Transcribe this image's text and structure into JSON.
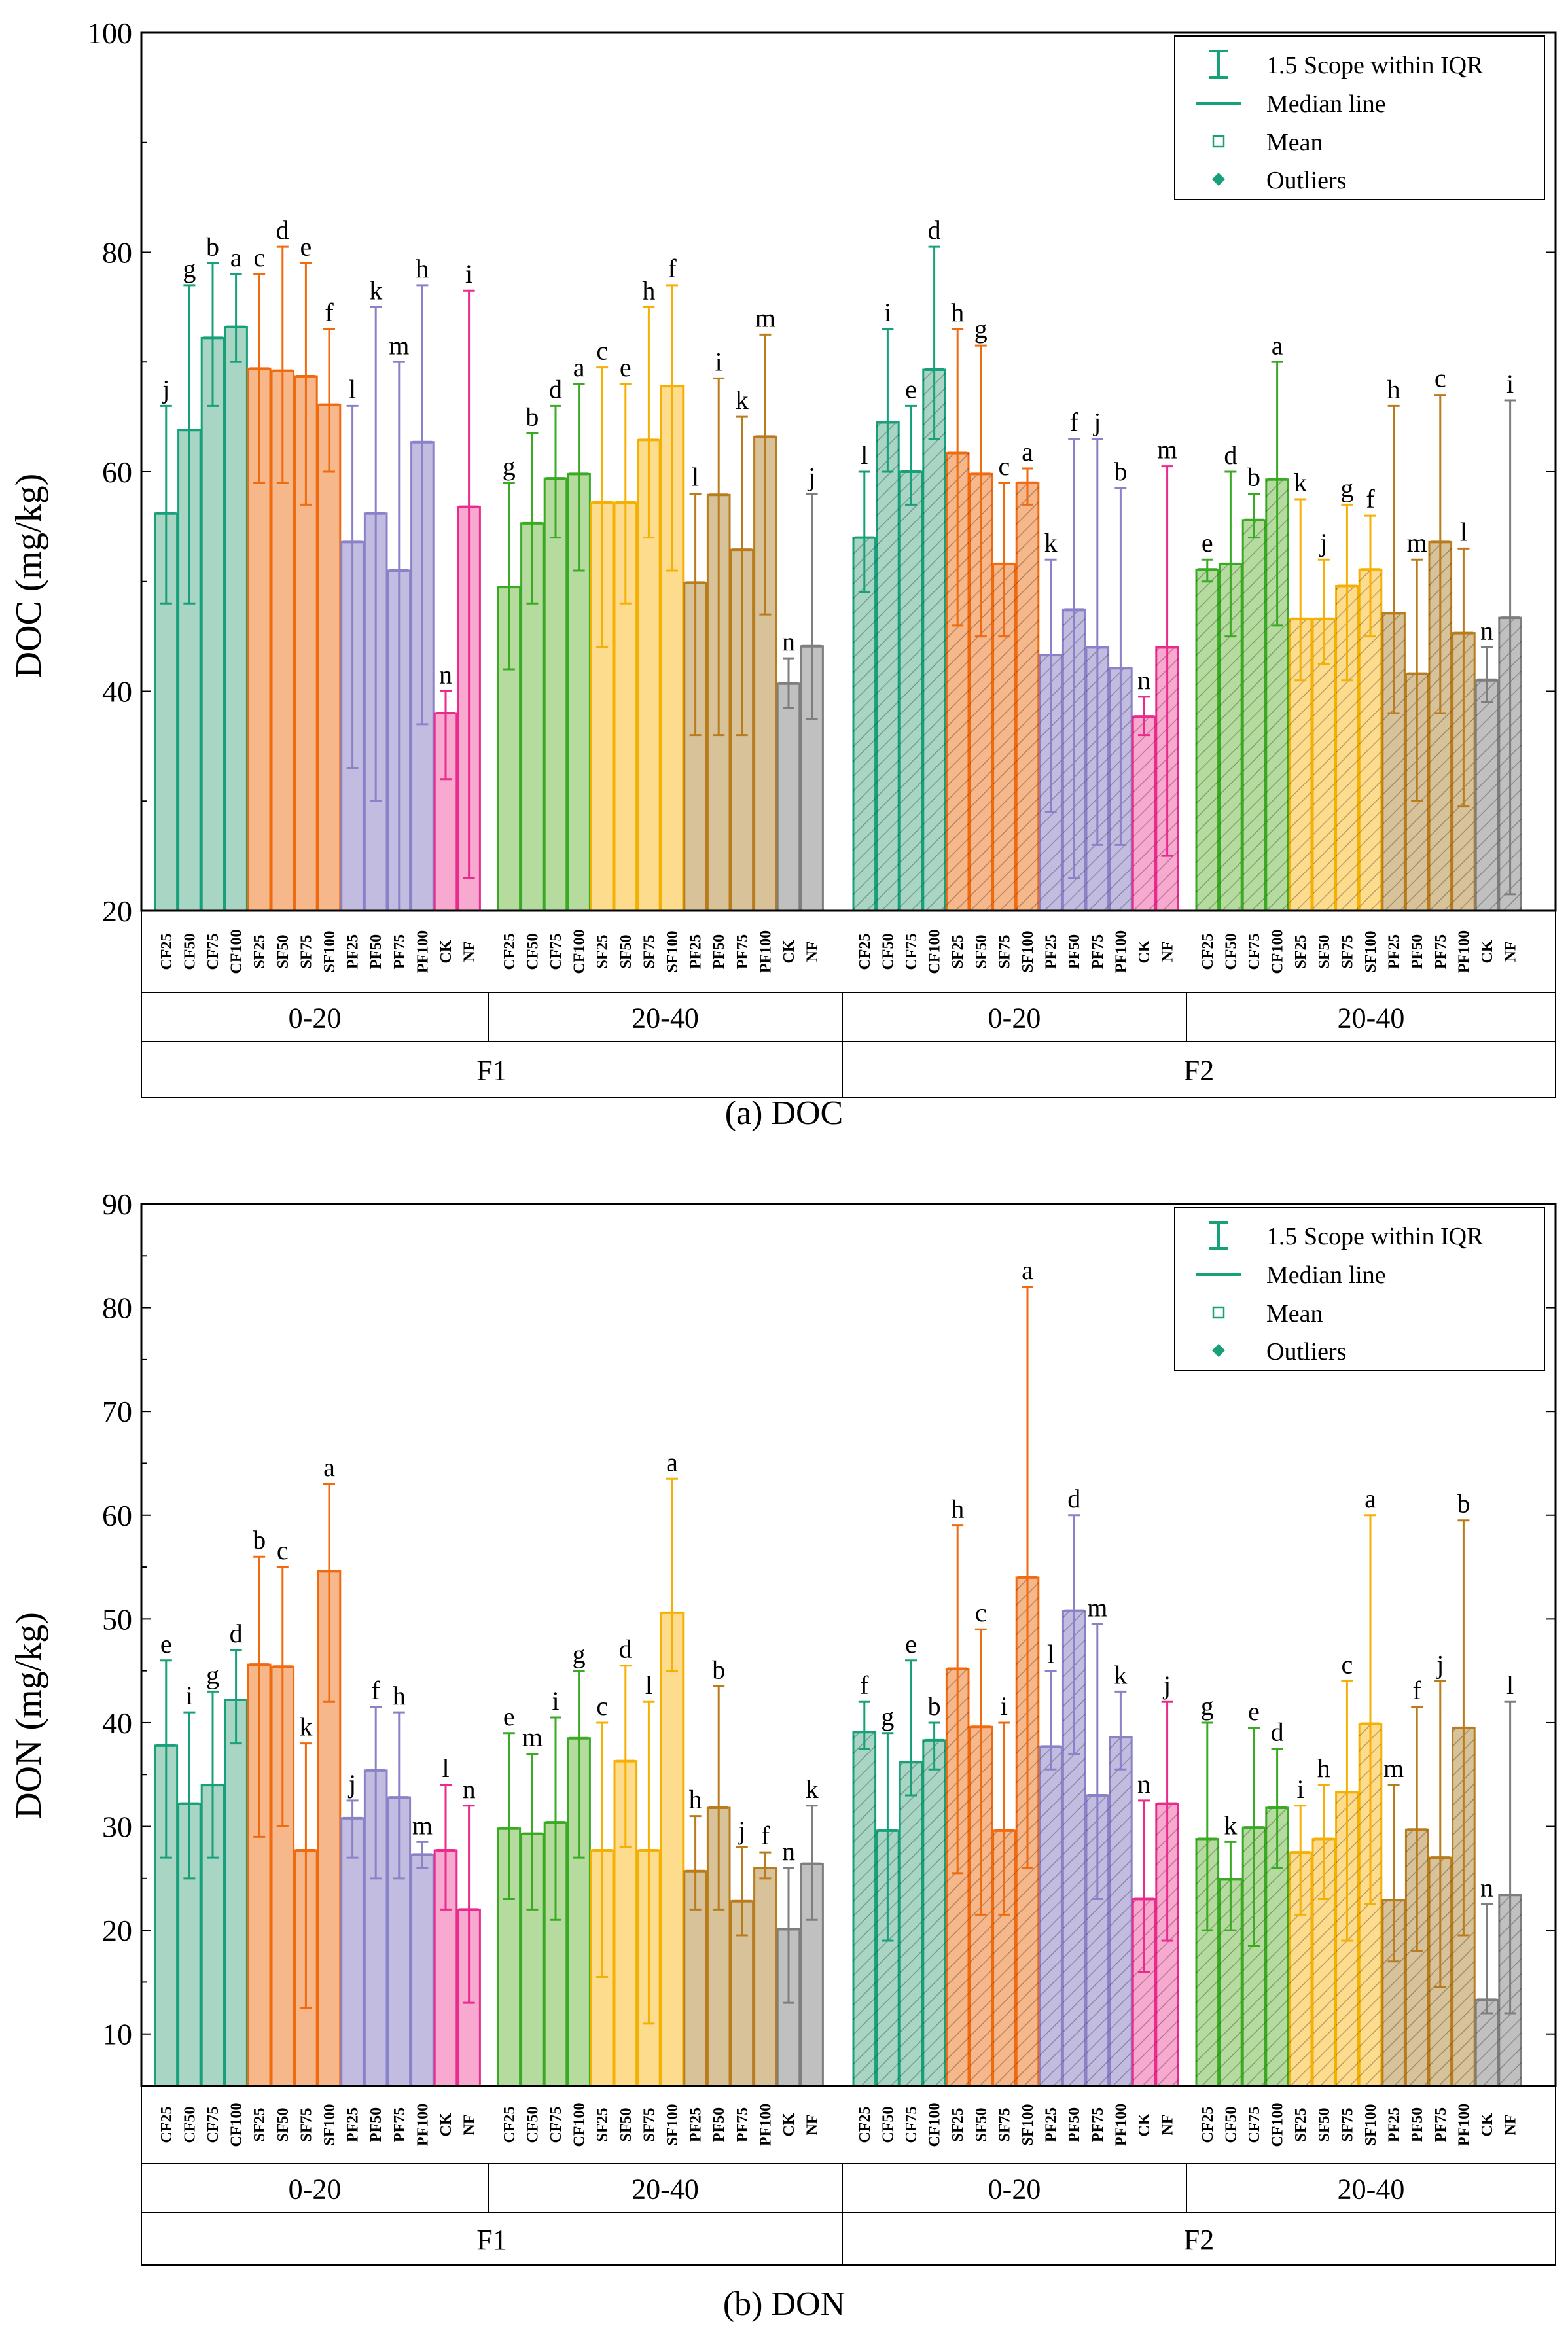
{
  "colors": {
    "CF": {
      "fill": "#a8d5c4",
      "stroke": "#17a07a"
    },
    "SF": {
      "fill": "#f6b78a",
      "stroke": "#f06a10"
    },
    "PF": {
      "fill": "#c2bde0",
      "stroke": "#8a82c8"
    },
    "CK": {
      "fill": "#f7a9cf",
      "stroke": "#ea2b8c"
    },
    "NF": {
      "fill": "#f7a9cf",
      "stroke": "#ea2b8c"
    },
    "CF_b": {
      "fill": "#b5dc9e",
      "stroke": "#3aaa25"
    },
    "SF_b": {
      "fill": "#fddc8e",
      "stroke": "#f5b005"
    },
    "PF_b": {
      "fill": "#d8c29a",
      "stroke": "#b97c1c"
    },
    "CK_b": {
      "fill": "#c0c0c0",
      "stroke": "#7e7e7e"
    },
    "NF_b": {
      "fill": "#c0c0c0",
      "stroke": "#7e7e7e"
    }
  },
  "legend": {
    "whisker": "1.5 Scope within IQR",
    "median": "Median line",
    "mean": "Mean",
    "outliers": "Outliers"
  },
  "chart_data": [
    {
      "type": "bar",
      "title": "(a) DOC",
      "ylabel": "DOC (mg/kg)",
      "ylim": [
        20,
        100
      ],
      "yticks": [
        "20",
        "40",
        "60",
        "80",
        "100"
      ],
      "top_groups": [
        "F1",
        "F2"
      ],
      "depth_groups": [
        "0-20",
        "20-40",
        "0-20",
        "20-40"
      ],
      "categories": [
        "CF25",
        "CF50",
        "CF75",
        "CF100",
        "SF25",
        "SF50",
        "SF75",
        "SF100",
        "PF25",
        "PF50",
        "PF75",
        "PF100",
        "CK",
        "NF"
      ],
      "series": [
        {
          "name": "F1 0-20",
          "values": [
            56.2,
            63.8,
            72.2,
            73.2,
            69.4,
            69.2,
            68.7,
            66.1,
            53.6,
            56.2,
            51.0,
            62.7,
            38.0,
            56.8
          ],
          "lower": [
            48,
            48,
            66,
            70,
            59,
            59,
            57,
            60,
            33,
            30,
            20,
            37,
            32,
            23
          ],
          "upper": [
            66,
            77,
            79,
            78,
            78,
            80.5,
            79,
            73,
            66,
            75,
            70,
            77,
            40,
            76.5
          ],
          "letters": [
            "j",
            "g",
            "b",
            "a",
            "c",
            "d",
            "e",
            "f",
            "l",
            "k",
            "m",
            "h",
            "n",
            "i"
          ]
        },
        {
          "name": "F1 20-40",
          "values": [
            49.5,
            55.3,
            59.4,
            59.8,
            57.2,
            57.2,
            62.9,
            67.8,
            49.9,
            57.9,
            52.9,
            63.2,
            40.7,
            44.1
          ],
          "lower": [
            42,
            48,
            54,
            51,
            44,
            48,
            54,
            51,
            36,
            36,
            36,
            47,
            38.5,
            37.5
          ],
          "upper": [
            59,
            63.5,
            66,
            68,
            69.5,
            68,
            75,
            77,
            58,
            68.5,
            65,
            72.5,
            43,
            58
          ],
          "letters": [
            "g",
            "b",
            "d",
            "a",
            "c",
            "e",
            "h",
            "f",
            "l",
            "i",
            "k",
            "m",
            "n",
            "j"
          ]
        },
        {
          "name": "F2 0-20",
          "values": [
            54.0,
            64.5,
            60.0,
            69.3,
            61.7,
            59.8,
            51.6,
            59.0,
            43.3,
            47.4,
            44.0,
            42.1,
            37.7,
            44.0
          ],
          "lower": [
            49,
            60,
            57,
            63,
            46,
            45,
            45,
            57,
            29,
            23,
            26,
            26,
            36,
            25
          ],
          "upper": [
            60,
            73,
            66,
            80.5,
            73,
            71.5,
            59,
            60.3,
            52,
            63,
            63,
            58.5,
            39.5,
            60.5
          ],
          "letters": [
            "l",
            "i",
            "e",
            "d",
            "h",
            "g",
            "c",
            "a",
            "k",
            "f",
            "j",
            "b",
            "n",
            "m"
          ]
        },
        {
          "name": "F2 20-40",
          "values": [
            51.1,
            51.6,
            55.6,
            59.3,
            46.6,
            46.6,
            49.6,
            51.1,
            47.1,
            41.6,
            53.6,
            45.3,
            41.0,
            46.7
          ],
          "lower": [
            50,
            45,
            54,
            46,
            41,
            42.5,
            41,
            45,
            38,
            30,
            38,
            29.5,
            39,
            21.5
          ],
          "upper": [
            52,
            60,
            58,
            70,
            57.5,
            52,
            57,
            56,
            66,
            52,
            67,
            53,
            44,
            66.5
          ],
          "letters": [
            "e",
            "d",
            "b",
            "a",
            "k",
            "j",
            "g",
            "f",
            "h",
            "m",
            "c",
            "l",
            "n",
            "i"
          ]
        }
      ]
    },
    {
      "type": "bar",
      "title": "(b) DON",
      "ylabel": "DON (mg/kg)",
      "ylim": [
        5,
        90
      ],
      "yticks": [
        "10",
        "20",
        "30",
        "40",
        "50",
        "60",
        "70",
        "80",
        "90"
      ],
      "top_groups": [
        "F1",
        "F2"
      ],
      "depth_groups": [
        "0-20",
        "20-40",
        "0-20",
        "20-40"
      ],
      "categories": [
        "CF25",
        "CF50",
        "CF75",
        "CF100",
        "SF25",
        "SF50",
        "SF75",
        "SF100",
        "PF25",
        "PF50",
        "PF75",
        "PF100",
        "CK",
        "NF"
      ],
      "series": [
        {
          "name": "F1 0-20",
          "values": [
            37.8,
            32.2,
            34.0,
            42.2,
            45.6,
            45.4,
            27.7,
            54.6,
            30.8,
            35.4,
            32.8,
            27.3,
            27.7,
            22.0
          ],
          "lower": [
            27,
            25,
            27,
            38,
            29,
            30,
            12.5,
            42,
            27,
            25,
            25,
            26,
            22,
            13
          ],
          "upper": [
            46,
            41,
            43,
            47,
            56,
            55,
            38,
            63,
            32.5,
            41.5,
            41,
            28.5,
            34,
            32
          ],
          "letters": [
            "e",
            "i",
            "g",
            "d",
            "b",
            "c",
            "k",
            "a",
            "j",
            "f",
            "h",
            "m",
            "l",
            "n"
          ]
        },
        {
          "name": "F1 20-40",
          "values": [
            29.8,
            29.3,
            30.4,
            38.5,
            27.7,
            36.3,
            27.7,
            50.6,
            25.7,
            31.8,
            22.8,
            26.0,
            20.1,
            26.4
          ],
          "lower": [
            23,
            22,
            21,
            27,
            15.5,
            28,
            11,
            45,
            22,
            22,
            19.5,
            25,
            13,
            21
          ],
          "upper": [
            39,
            37,
            40.5,
            45,
            40,
            45.5,
            42,
            63.5,
            31,
            43.5,
            28,
            27.5,
            26,
            32
          ],
          "letters": [
            "e",
            "m",
            "i",
            "g",
            "c",
            "d",
            "l",
            "a",
            "h",
            "b",
            "j",
            "f",
            "n",
            "k"
          ]
        },
        {
          "name": "F2 0-20",
          "values": [
            39.1,
            29.6,
            36.2,
            38.3,
            45.2,
            39.6,
            29.6,
            54.0,
            37.7,
            50.8,
            33.0,
            38.6,
            23.0,
            32.2
          ],
          "lower": [
            37.5,
            19,
            33,
            35.5,
            25.5,
            21.5,
            21.5,
            26,
            35.5,
            37,
            23,
            35.5,
            16,
            19
          ],
          "upper": [
            42,
            39,
            46,
            40,
            59,
            49,
            40,
            82,
            45,
            60,
            49.5,
            43,
            32.5,
            42
          ],
          "letters": [
            "f",
            "g",
            "e",
            "b",
            "h",
            "c",
            "i",
            "a",
            "l",
            "d",
            "m",
            "k",
            "n",
            "j"
          ]
        },
        {
          "name": "F2 20-40",
          "values": [
            28.8,
            24.9,
            29.9,
            31.8,
            27.5,
            28.8,
            33.3,
            39.9,
            22.9,
            29.7,
            27.0,
            39.5,
            13.3,
            23.4
          ],
          "lower": [
            20,
            20,
            18.5,
            26,
            21.5,
            23,
            19,
            22.5,
            17,
            18,
            14.5,
            19.5,
            12,
            12
          ],
          "upper": [
            40,
            28.5,
            39.5,
            37.5,
            32,
            34,
            44,
            60,
            34,
            41.5,
            44,
            59.5,
            22.5,
            42
          ],
          "letters": [
            "g",
            "k",
            "e",
            "d",
            "i",
            "h",
            "c",
            "a",
            "m",
            "f",
            "j",
            "b",
            "n",
            "l"
          ]
        }
      ]
    }
  ]
}
